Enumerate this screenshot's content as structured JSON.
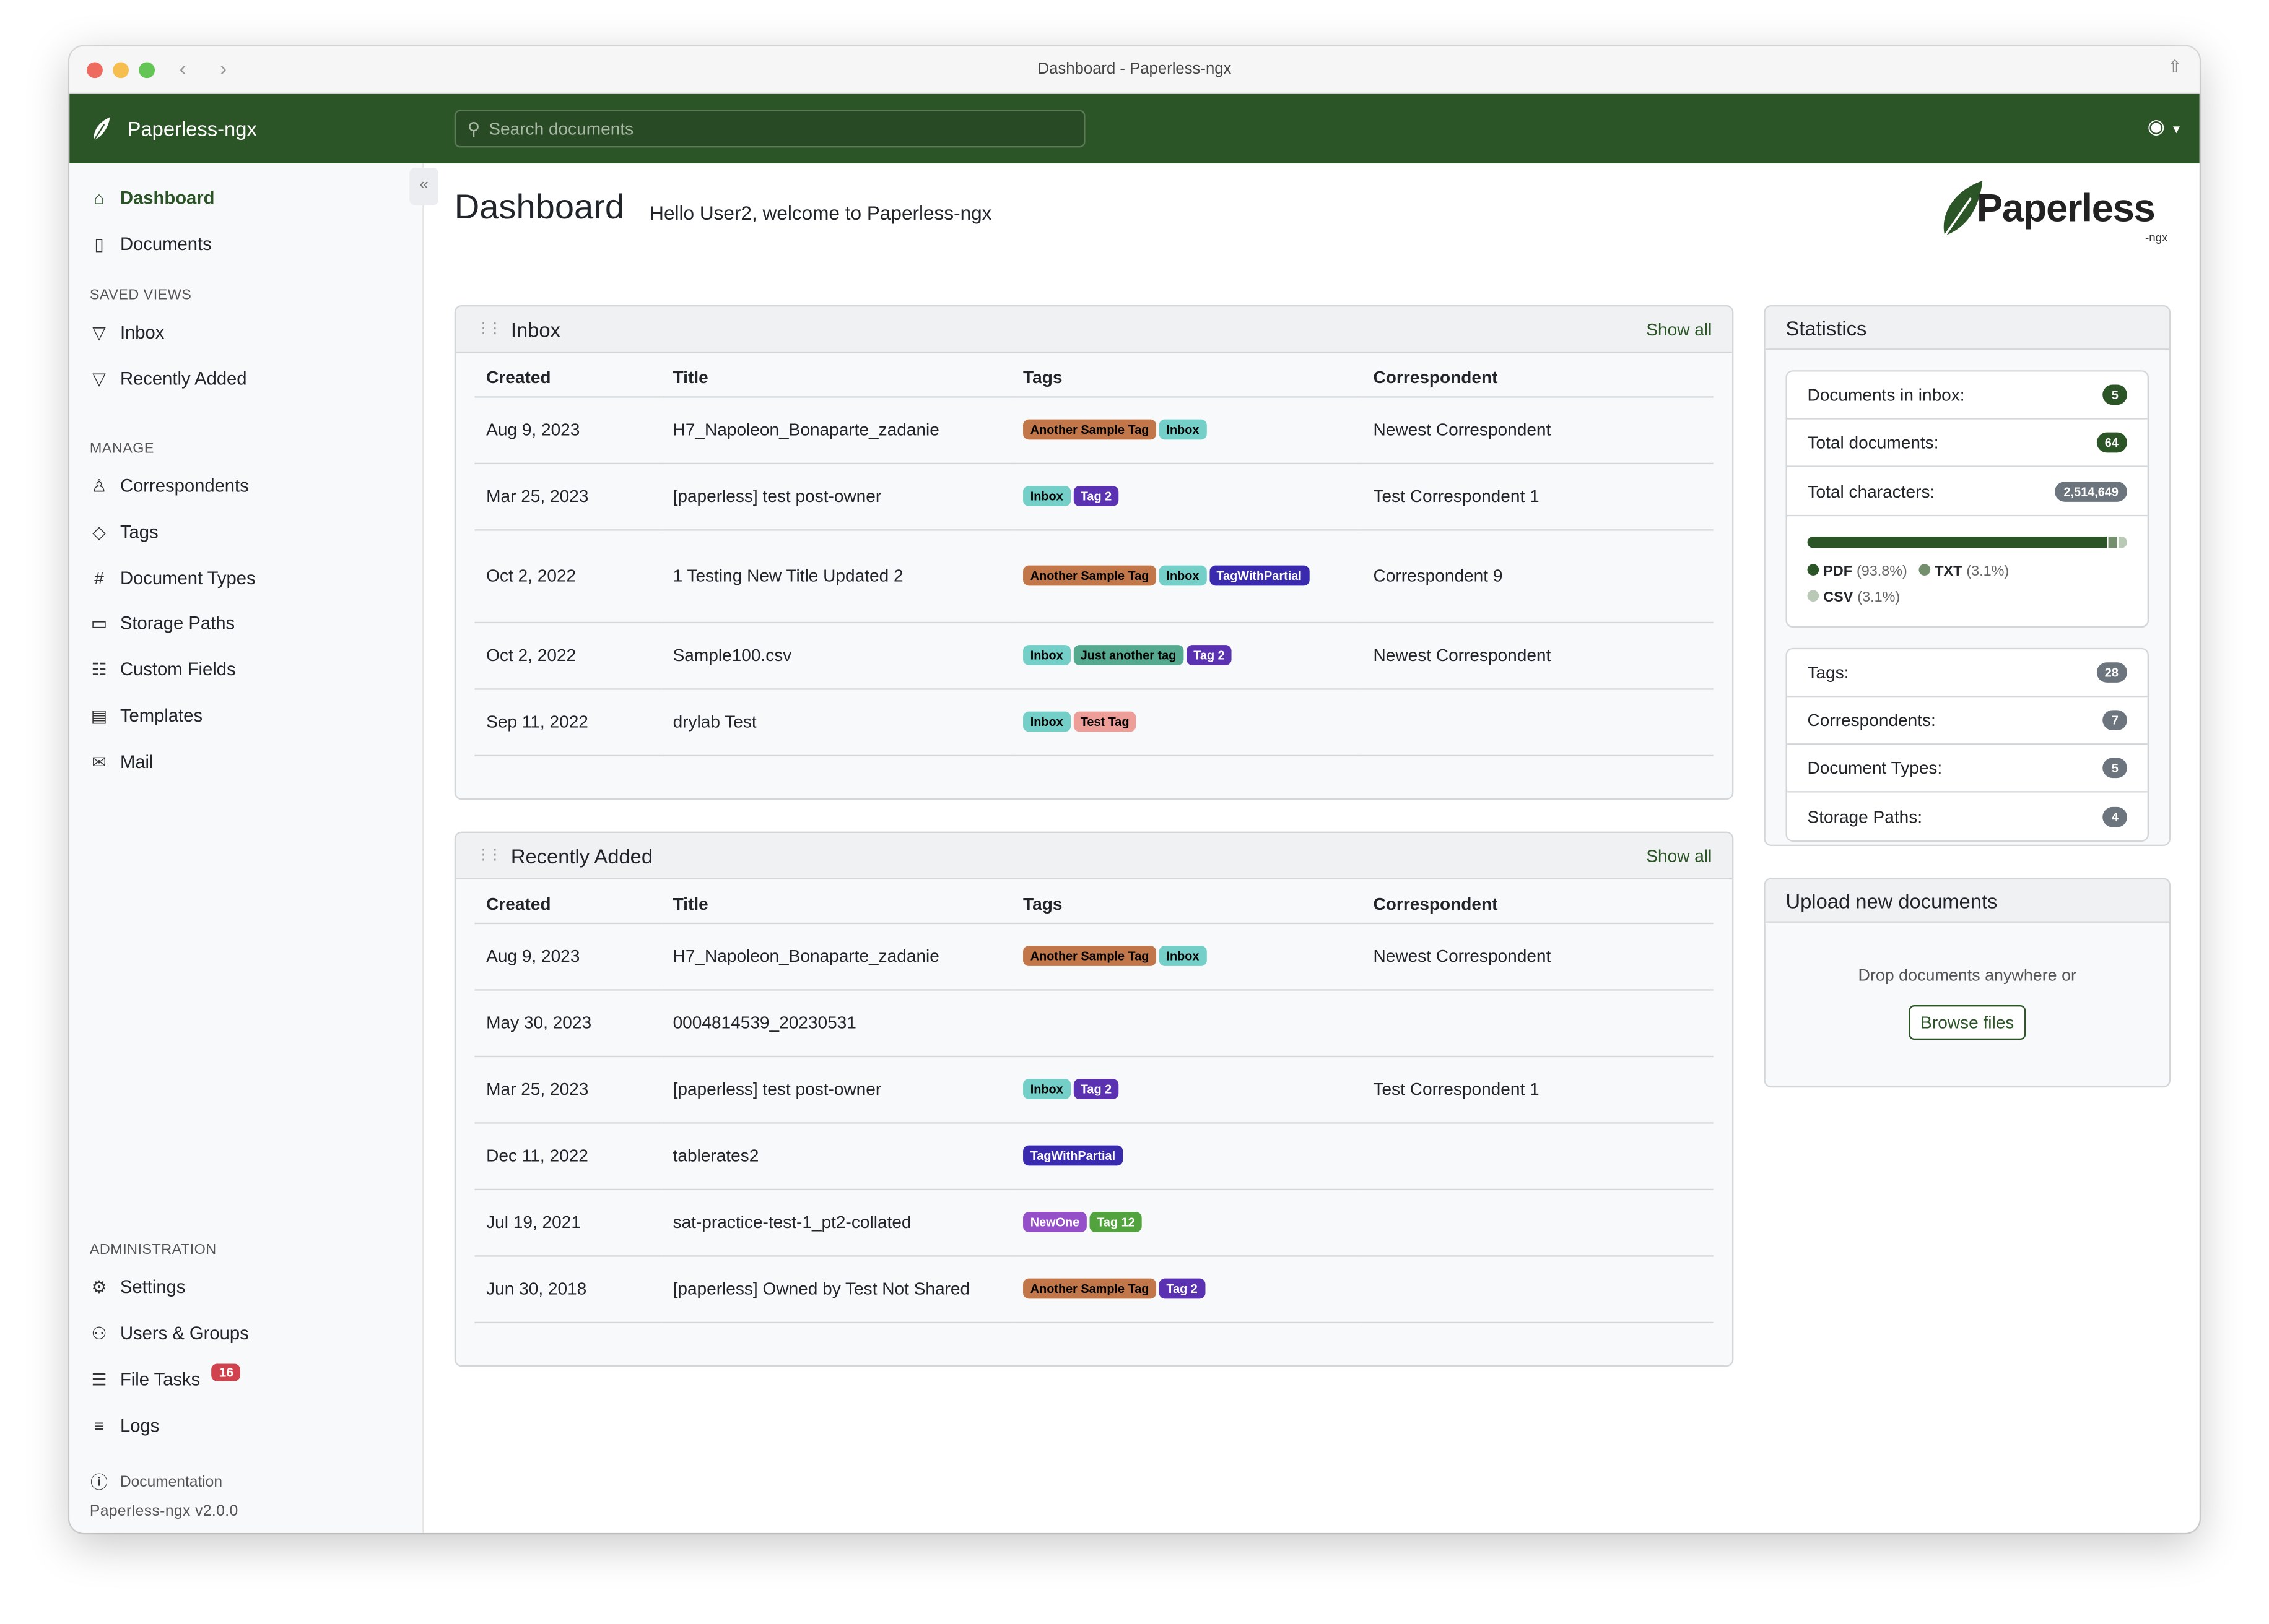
{
  "window": {
    "title": "Dashboard - Paperless-ngx"
  },
  "navbar": {
    "brand": "Paperless-ngx",
    "search_placeholder": "Search documents",
    "accent": "#2c5527"
  },
  "sidebar": {
    "items": [
      {
        "label": "Dashboard",
        "icon": "house-icon"
      },
      {
        "label": "Documents",
        "icon": "file-icon"
      }
    ],
    "saved_views_heading": "SAVED VIEWS",
    "saved_views": [
      {
        "label": "Inbox"
      },
      {
        "label": "Recently Added"
      }
    ],
    "manage_heading": "MANAGE",
    "manage": [
      {
        "label": "Correspondents"
      },
      {
        "label": "Tags"
      },
      {
        "label": "Document Types"
      },
      {
        "label": "Storage Paths"
      },
      {
        "label": "Custom Fields"
      },
      {
        "label": "Templates"
      },
      {
        "label": "Mail"
      }
    ],
    "admin_heading": "ADMINISTRATION",
    "admin": [
      {
        "label": "Settings"
      },
      {
        "label": "Users & Groups"
      },
      {
        "label": "File Tasks",
        "badge": "16"
      },
      {
        "label": "Logs"
      }
    ],
    "documentation": "Documentation",
    "version": "Paperless-ngx v2.0.0"
  },
  "main": {
    "title": "Dashboard",
    "welcome": "Hello User2, welcome to Paperless-ngx",
    "logo_text": "Paperless",
    "logo_sub": "-ngx"
  },
  "columns": [
    "Created",
    "Title",
    "Tags",
    "Correspondent"
  ],
  "inbox": {
    "title": "Inbox",
    "show_all": "Show all",
    "rows": [
      {
        "created": "Aug 9, 2023",
        "title": "H7_Napoleon_Bonaparte_zadanie",
        "tags": [
          "Another Sample Tag",
          "Inbox"
        ],
        "correspondent": "Newest Correspondent"
      },
      {
        "created": "Mar 25, 2023",
        "title": "[paperless] test post-owner",
        "tags": [
          "Inbox",
          "Tag 2"
        ],
        "correspondent": "Test Correspondent 1"
      },
      {
        "created": "Oct 2, 2022",
        "title": "1 Testing New Title Updated 2",
        "tags": [
          "Another Sample Tag",
          "Inbox",
          "TagWithPartial"
        ],
        "correspondent": "Correspondent 9"
      },
      {
        "created": "Oct 2, 2022",
        "title": "Sample100.csv",
        "tags": [
          "Inbox",
          "Just another tag",
          "Tag 2"
        ],
        "correspondent": "Newest Correspondent"
      },
      {
        "created": "Sep 11, 2022",
        "title": "drylab Test",
        "tags": [
          "Inbox",
          "Test Tag"
        ],
        "correspondent": ""
      }
    ]
  },
  "recent": {
    "title": "Recently Added",
    "show_all": "Show all",
    "rows": [
      {
        "created": "Aug 9, 2023",
        "title": "H7_Napoleon_Bonaparte_zadanie",
        "tags": [
          "Another Sample Tag",
          "Inbox"
        ],
        "correspondent": "Newest Correspondent"
      },
      {
        "created": "May 30, 2023",
        "title": "0004814539_20230531",
        "tags": [],
        "correspondent": ""
      },
      {
        "created": "Mar 25, 2023",
        "title": "[paperless] test post-owner",
        "tags": [
          "Inbox",
          "Tag 2"
        ],
        "correspondent": "Test Correspondent 1"
      },
      {
        "created": "Dec 11, 2022",
        "title": "tablerates2",
        "tags": [
          "TagWithPartial"
        ],
        "correspondent": ""
      },
      {
        "created": "Jul 19, 2021",
        "title": "sat-practice-test-1_pt2-collated",
        "tags": [
          "NewOne",
          "Tag 12"
        ],
        "correspondent": ""
      },
      {
        "created": "Jun 30, 2018",
        "title": "[paperless] Owned by Test Not Shared",
        "tags": [
          "Another Sample Tag",
          "Tag 2"
        ],
        "correspondent": ""
      }
    ]
  },
  "tag_colors": {
    "Another Sample Tag": {
      "bg": "#c2774a",
      "fg": "#000000"
    },
    "Inbox": {
      "bg": "#74cfc8",
      "fg": "#000000"
    },
    "Tag 2": {
      "bg": "#5a31b1",
      "fg": "#ffffff"
    },
    "TagWithPartial": {
      "bg": "#3a2bae",
      "fg": "#ffffff"
    },
    "Just another tag": {
      "bg": "#55a98f",
      "fg": "#000000"
    },
    "Test Tag": {
      "bg": "#ee9e98",
      "fg": "#000000"
    },
    "NewOne": {
      "bg": "#944fc9",
      "fg": "#ffffff"
    },
    "Tag 12": {
      "bg": "#52a23e",
      "fg": "#ffffff"
    }
  },
  "statistics": {
    "title": "Statistics",
    "counts": [
      {
        "label": "Documents in inbox:",
        "value": "5",
        "color": "#2c5527"
      },
      {
        "label": "Total documents:",
        "value": "64",
        "color": "#2c5527"
      },
      {
        "label": "Total characters:",
        "value": "2,514,649",
        "color": "#6c757d"
      }
    ],
    "file_types": [
      {
        "name": "PDF",
        "pct": "(93.8%)",
        "value": 93.8,
        "color": "#2c5527"
      },
      {
        "name": "TXT",
        "pct": "(3.1%)",
        "value": 3.1,
        "color": "#748f6e"
      },
      {
        "name": "CSV",
        "pct": "(3.1%)",
        "value": 3.1,
        "color": "#b9c9b6"
      }
    ],
    "objects": [
      {
        "label": "Tags:",
        "value": "28"
      },
      {
        "label": "Correspondents:",
        "value": "7"
      },
      {
        "label": "Document Types:",
        "value": "5"
      },
      {
        "label": "Storage Paths:",
        "value": "4"
      }
    ]
  },
  "upload": {
    "title": "Upload new documents",
    "hint": "Drop documents anywhere or",
    "browse": "Browse files"
  }
}
